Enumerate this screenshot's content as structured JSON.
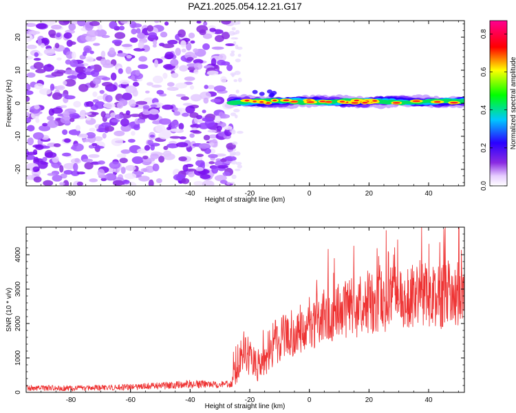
{
  "title": "PAZ1.2025.054.12.21.G17",
  "chart_data": [
    {
      "type": "heatmap",
      "xlabel": "Height of straight line (km)",
      "ylabel": "Frequency (Hz)",
      "xlim": [
        -95,
        52
      ],
      "ylim": [
        -25,
        25
      ],
      "xticks": [
        -80,
        -60,
        -40,
        -20,
        0,
        20,
        40
      ],
      "yticks": [
        -20,
        -10,
        0,
        10,
        20
      ],
      "noise_region_x": [
        -95,
        -26
      ],
      "signal_region_x": [
        -26,
        52
      ],
      "signal_frequency_hz": 0.5,
      "colormap": "rainbow (white-purple-blue-cyan-green-yellow-red-magenta)",
      "colorbar": {
        "label": "Normalized spectral amplitude",
        "range": [
          0.0,
          0.87
        ],
        "ticks": [
          "0.0",
          "0.2",
          "0.4",
          "0.6",
          "0.8"
        ]
      }
    },
    {
      "type": "line",
      "xlabel": "Height of straight line (km)",
      "ylabel": "SNR (10 * v/v)",
      "xlim": [
        -95,
        52
      ],
      "ylim": [
        0,
        4800
      ],
      "xticks": [
        -80,
        -60,
        -40,
        -20,
        0,
        20,
        40
      ],
      "yticks": [
        0,
        1000,
        2000,
        3000,
        4000
      ],
      "series": [
        {
          "color": "#ee3333",
          "x": [
            -95,
            -80,
            -60,
            -45,
            -40,
            -30,
            -26,
            -25,
            -22,
            -20,
            -18,
            -16,
            -14,
            -12,
            -10,
            -8,
            -6,
            -4,
            -2,
            0,
            2,
            4,
            6,
            8,
            10,
            12,
            14,
            16,
            18,
            20,
            22,
            24,
            26,
            28,
            30,
            32,
            34,
            36,
            38,
            40,
            42,
            44,
            46,
            48,
            50,
            52
          ],
          "values": [
            130,
            120,
            150,
            210,
            240,
            230,
            250,
            600,
            1200,
            1000,
            900,
            700,
            1200,
            1300,
            1500,
            1700,
            1400,
            1700,
            1800,
            1900,
            2000,
            2300,
            2200,
            2100,
            2400,
            2300,
            2500,
            2300,
            2700,
            2600,
            2500,
            2700,
            2600,
            2800,
            2700,
            2800,
            2700,
            3000,
            2900,
            2800,
            2900,
            2700,
            3000,
            2800,
            2900,
            3100
          ],
          "noise_amplitude": [
            80,
            80,
            90,
            110,
            120,
            100,
            100,
            400,
            600,
            550,
            500,
            500,
            600,
            600,
            650,
            650,
            600,
            650,
            650,
            700,
            700,
            800,
            750,
            750,
            800,
            800,
            850,
            800,
            900,
            900,
            850,
            900,
            850,
            900,
            900,
            900,
            900,
            950,
            950,
            900,
            950,
            900,
            1000,
            950,
            950,
            900
          ]
        }
      ]
    }
  ]
}
